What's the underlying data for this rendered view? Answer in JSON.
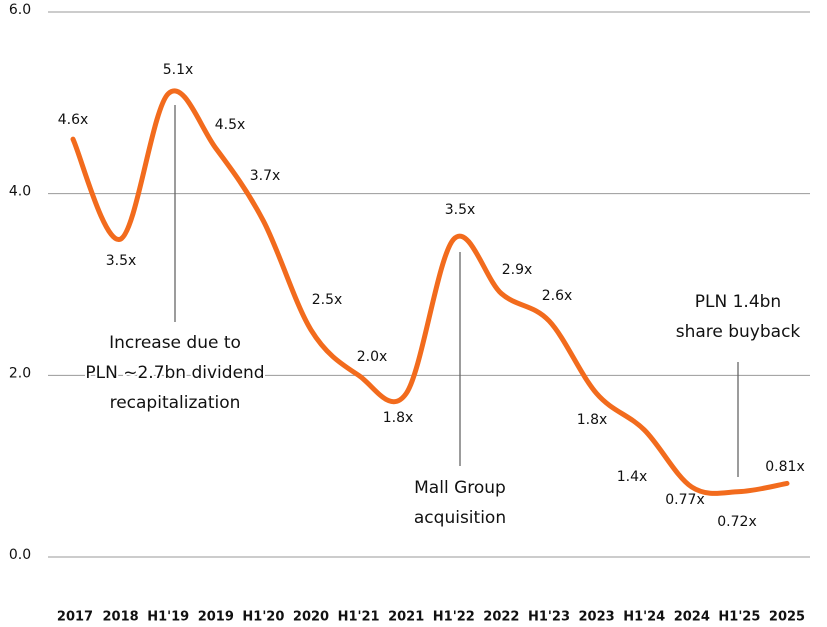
{
  "chart_data": {
    "type": "line",
    "categories": [
      "2017",
      "2018",
      "H1'19",
      "2019",
      "H1'20",
      "2020",
      "H1'21",
      "2021",
      "H1'22",
      "2022",
      "H1'23",
      "2023",
      "H1'24",
      "2024",
      "H1'25",
      "2025"
    ],
    "values": [
      4.6,
      3.5,
      5.1,
      4.5,
      3.7,
      2.5,
      2.0,
      1.8,
      3.5,
      2.9,
      2.6,
      1.8,
      1.4,
      0.77,
      0.72,
      0.81
    ],
    "value_labels": [
      "4.6x",
      "3.5x",
      "5.1x",
      "4.5x",
      "3.7x",
      "2.5x",
      "2.0x",
      "1.8x",
      "3.5x",
      "2.9x",
      "2.6x",
      "1.8x",
      "1.4x",
      "0.77x",
      "0.72x",
      "0.81x"
    ],
    "color": "#f26b1d",
    "ylim": [
      0,
      6
    ],
    "yticks": [
      {
        "value": 0,
        "label": "0.0"
      },
      {
        "value": 2,
        "label": "2.0"
      },
      {
        "value": 4,
        "label": "4.0"
      },
      {
        "value": 6,
        "label": "6.0"
      }
    ],
    "grid": true,
    "annotations": [
      [
        "Increase due to",
        "PLN ~2.7bn dividend",
        "recapitalization"
      ],
      [
        "Mall Group",
        "acquisition"
      ],
      [
        "PLN 1.4bn",
        "share buyback"
      ]
    ]
  }
}
